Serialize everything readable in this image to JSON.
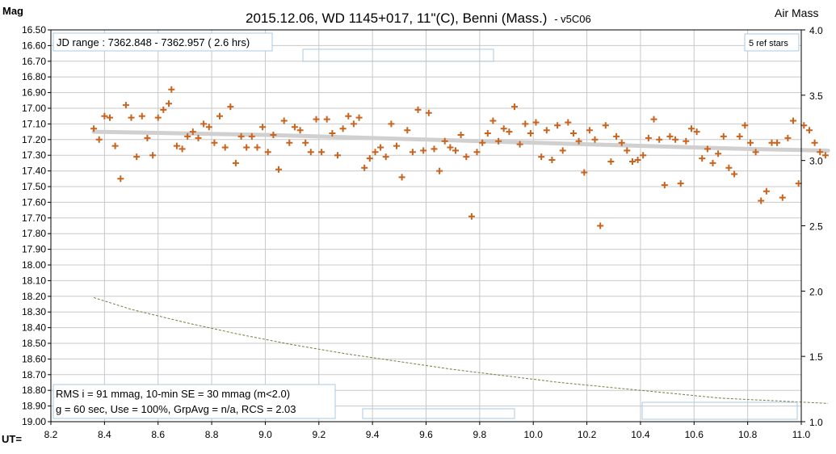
{
  "title": {
    "main": "2015.12.06, WD 1145+017, 11\"(C), Benni (Mass.)",
    "suffix": "- v5C06"
  },
  "left_axis_label": "Mag",
  "right_axis_label": "Air Mass",
  "x_axis_label": "UT=",
  "info_top_left": "JD range : 7362.848 - 7362.957 ( 2.6 hrs)",
  "info_top_right": "5 ref stars",
  "stats": {
    "line1": "RMS i = 91 mmag, 10-min SE = 30 mmag (m<2.0)",
    "line2": "g = 60 sec, Use = 100%, GrpAvg = n/a, RCS = 2.03"
  },
  "colors": {
    "points": "#c8641e",
    "trend": "#d0d0d0",
    "airmass": "#7a7a40",
    "frame": "#000000",
    "empty_box": "#a8c8e0"
  },
  "chart_data": {
    "type": "scatter",
    "x_axis": {
      "label": "UT=",
      "range": [
        8.2,
        11.0
      ],
      "ticks": [
        "8.2",
        "8.4",
        "8.6",
        "8.8",
        "9.0",
        "9.2",
        "9.4",
        "9.6",
        "9.8",
        "10.0",
        "10.2",
        "10.4",
        "10.6",
        "10.8",
        "11.0"
      ]
    },
    "y_axis_left": {
      "label": "Mag",
      "range": [
        16.5,
        19.0
      ],
      "inverted": true,
      "ticks": [
        "16.50",
        "16.60",
        "16.70",
        "16.80",
        "16.90",
        "17.00",
        "17.10",
        "17.20",
        "17.30",
        "17.40",
        "17.50",
        "17.60",
        "17.70",
        "17.80",
        "17.90",
        "18.00",
        "18.10",
        "18.20",
        "18.30",
        "18.40",
        "18.50",
        "18.60",
        "18.70",
        "18.80",
        "18.90",
        "19.00"
      ]
    },
    "y_axis_right": {
      "label": "Air Mass",
      "range": [
        1.0,
        4.0
      ],
      "ticks": [
        "1.0",
        "1.5",
        "2.0",
        "2.5",
        "3.0",
        "3.5",
        "4.0"
      ]
    },
    "grid": true,
    "series": [
      {
        "style": "cross-markers",
        "points": [
          [
            8.36,
            17.13
          ],
          [
            8.38,
            17.2
          ],
          [
            8.4,
            17.05
          ],
          [
            8.42,
            17.06
          ],
          [
            8.44,
            17.24
          ],
          [
            8.46,
            17.45
          ],
          [
            8.48,
            16.98
          ],
          [
            8.5,
            17.06
          ],
          [
            8.52,
            17.31
          ],
          [
            8.54,
            17.05
          ],
          [
            8.56,
            17.19
          ],
          [
            8.58,
            17.3
          ],
          [
            8.6,
            17.06
          ],
          [
            8.62,
            17.01
          ],
          [
            8.64,
            16.97
          ],
          [
            8.65,
            16.88
          ],
          [
            8.67,
            17.24
          ],
          [
            8.69,
            17.26
          ],
          [
            8.71,
            17.18
          ],
          [
            8.73,
            17.15
          ],
          [
            8.75,
            17.19
          ],
          [
            8.77,
            17.1
          ],
          [
            8.79,
            17.12
          ],
          [
            8.81,
            17.22
          ],
          [
            8.83,
            17.05
          ],
          [
            8.85,
            17.25
          ],
          [
            8.87,
            16.99
          ],
          [
            8.89,
            17.35
          ],
          [
            8.91,
            17.18
          ],
          [
            8.93,
            17.25
          ],
          [
            8.95,
            17.18
          ],
          [
            8.97,
            17.25
          ],
          [
            8.99,
            17.12
          ],
          [
            9.01,
            17.28
          ],
          [
            9.03,
            17.17
          ],
          [
            9.05,
            17.39
          ],
          [
            9.07,
            17.08
          ],
          [
            9.09,
            17.22
          ],
          [
            9.11,
            17.12
          ],
          [
            9.13,
            17.14
          ],
          [
            9.15,
            17.22
          ],
          [
            9.17,
            17.28
          ],
          [
            9.19,
            17.07
          ],
          [
            9.21,
            17.28
          ],
          [
            9.23,
            17.07
          ],
          [
            9.25,
            17.16
          ],
          [
            9.27,
            17.3
          ],
          [
            9.29,
            17.13
          ],
          [
            9.31,
            17.05
          ],
          [
            9.33,
            17.1
          ],
          [
            9.35,
            17.06
          ],
          [
            9.37,
            17.38
          ],
          [
            9.39,
            17.32
          ],
          [
            9.41,
            17.28
          ],
          [
            9.43,
            17.25
          ],
          [
            9.45,
            17.31
          ],
          [
            9.47,
            17.1
          ],
          [
            9.49,
            17.24
          ],
          [
            9.51,
            17.44
          ],
          [
            9.53,
            17.14
          ],
          [
            9.55,
            17.28
          ],
          [
            9.57,
            17.01
          ],
          [
            9.59,
            17.27
          ],
          [
            9.61,
            17.03
          ],
          [
            9.63,
            17.26
          ],
          [
            9.65,
            17.4
          ],
          [
            9.67,
            17.21
          ],
          [
            9.69,
            17.25
          ],
          [
            9.71,
            17.27
          ],
          [
            9.73,
            17.17
          ],
          [
            9.75,
            17.31
          ],
          [
            9.77,
            17.69
          ],
          [
            9.79,
            17.28
          ],
          [
            9.81,
            17.22
          ],
          [
            9.83,
            17.16
          ],
          [
            9.85,
            17.08
          ],
          [
            9.87,
            17.21
          ],
          [
            9.89,
            17.13
          ],
          [
            9.91,
            17.15
          ],
          [
            9.93,
            16.99
          ],
          [
            9.95,
            17.23
          ],
          [
            9.97,
            17.1
          ],
          [
            9.99,
            17.16
          ],
          [
            10.01,
            17.09
          ],
          [
            10.03,
            17.31
          ],
          [
            10.05,
            17.14
          ],
          [
            10.07,
            17.33
          ],
          [
            10.09,
            17.11
          ],
          [
            10.11,
            17.27
          ],
          [
            10.13,
            17.09
          ],
          [
            10.15,
            17.16
          ],
          [
            10.17,
            17.21
          ],
          [
            10.19,
            17.41
          ],
          [
            10.21,
            17.14
          ],
          [
            10.23,
            17.2
          ],
          [
            10.25,
            17.75
          ],
          [
            10.27,
            17.11
          ],
          [
            10.29,
            17.34
          ],
          [
            10.31,
            17.18
          ],
          [
            10.33,
            17.22
          ],
          [
            10.35,
            17.27
          ],
          [
            10.37,
            17.34
          ],
          [
            10.39,
            17.33
          ],
          [
            10.41,
            17.3
          ],
          [
            10.43,
            17.19
          ],
          [
            10.45,
            17.07
          ],
          [
            10.47,
            17.2
          ],
          [
            10.49,
            17.49
          ],
          [
            10.51,
            17.18
          ],
          [
            10.53,
            17.2
          ],
          [
            10.55,
            17.48
          ],
          [
            10.57,
            17.21
          ],
          [
            10.59,
            17.13
          ],
          [
            10.61,
            17.15
          ],
          [
            10.63,
            17.32
          ],
          [
            10.65,
            17.26
          ],
          [
            10.67,
            17.35
          ],
          [
            10.69,
            17.29
          ],
          [
            10.71,
            17.18
          ],
          [
            10.73,
            17.38
          ],
          [
            10.75,
            17.42
          ],
          [
            10.77,
            17.18
          ],
          [
            10.79,
            17.11
          ],
          [
            10.81,
            17.22
          ],
          [
            10.83,
            17.28
          ],
          [
            10.85,
            17.59
          ],
          [
            10.87,
            17.53
          ],
          [
            10.89,
            17.22
          ],
          [
            10.91,
            17.22
          ],
          [
            10.93,
            17.57
          ],
          [
            10.95,
            17.19
          ],
          [
            10.97,
            17.08
          ],
          [
            10.99,
            17.48
          ],
          [
            11.01,
            17.11
          ],
          [
            11.03,
            17.14
          ],
          [
            11.05,
            17.22
          ],
          [
            11.07,
            17.28
          ],
          [
            11.09,
            17.3
          ]
        ]
      },
      {
        "style": "trend-line",
        "x": [
          8.36,
          9.0,
          9.6,
          10.2,
          10.8,
          11.1
        ],
        "y": [
          17.15,
          17.17,
          17.2,
          17.23,
          17.26,
          17.27
        ]
      },
      {
        "style": "airmass-dashed",
        "axis": "right",
        "x": [
          8.36,
          8.5,
          8.7,
          8.9,
          9.1,
          9.3,
          9.5,
          9.7,
          9.9,
          10.1,
          10.3,
          10.5,
          10.7,
          10.9,
          11.1
        ],
        "y": [
          1.95,
          1.86,
          1.76,
          1.67,
          1.59,
          1.52,
          1.46,
          1.4,
          1.35,
          1.3,
          1.26,
          1.22,
          1.18,
          1.16,
          1.14
        ]
      }
    ]
  }
}
